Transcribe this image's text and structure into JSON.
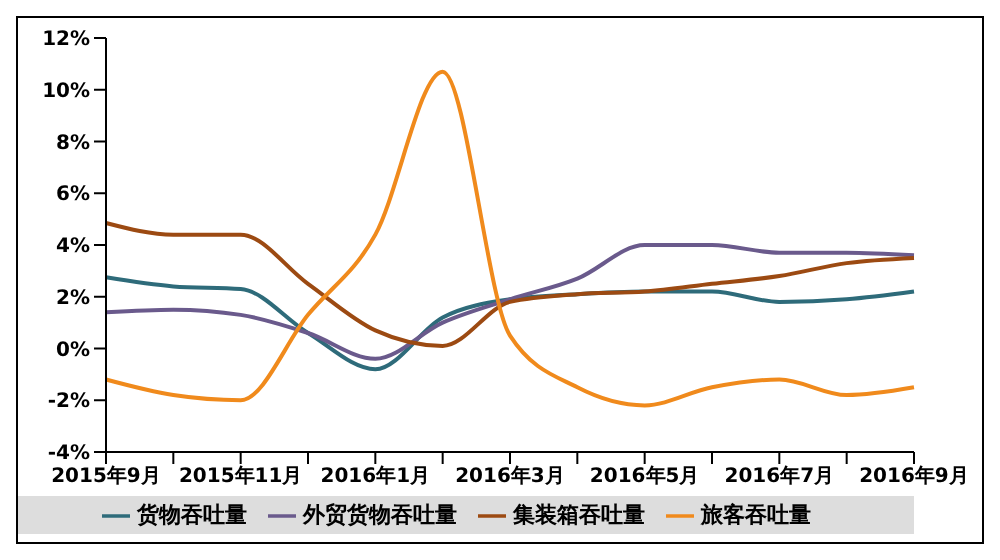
{
  "chart_data": {
    "type": "line",
    "categories": [
      "2015年9月",
      null,
      "2015年11月",
      null,
      "2016年1月",
      null,
      "2016年3月",
      null,
      "2016年5月",
      null,
      "2016年7月",
      null,
      "2016年9月"
    ],
    "series": [
      {
        "name": "货物吞吐量",
        "color": "#2e6b7a",
        "values": [
          2.75,
          2.4,
          2.3,
          0.6,
          -0.8,
          1.2,
          1.9,
          2.1,
          2.2,
          2.2,
          1.8,
          1.9,
          2.2
        ]
      },
      {
        "name": "外贸货物吞吐量",
        "color": "#6a5a8c",
        "values": [
          1.4,
          1.5,
          1.3,
          0.6,
          -0.4,
          1.0,
          1.9,
          2.7,
          4.0,
          4.0,
          3.7,
          3.7,
          3.6
        ]
      },
      {
        "name": "集装箱吞吐量",
        "color": "#9c4a12",
        "values": [
          4.85,
          4.4,
          4.4,
          2.5,
          0.7,
          0.1,
          1.8,
          2.1,
          2.2,
          2.5,
          2.8,
          3.3,
          3.5
        ]
      },
      {
        "name": "旅客吞吐量",
        "color": "#f08a1c",
        "values": [
          -1.2,
          -1.8,
          -2.0,
          1.3,
          4.4,
          10.7,
          0.5,
          -1.5,
          -2.2,
          -1.5,
          -1.2,
          -1.8,
          -1.5
        ]
      }
    ],
    "ylim": [
      -4,
      12
    ],
    "yticks": [
      {
        "value": -4,
        "label": "-4%"
      },
      {
        "value": -2,
        "label": "-2%"
      },
      {
        "value": 0,
        "label": "0%"
      },
      {
        "value": 2,
        "label": "2%"
      },
      {
        "value": 4,
        "label": "4%"
      },
      {
        "value": 6,
        "label": "6%"
      },
      {
        "value": 8,
        "label": "8%"
      },
      {
        "value": 10,
        "label": "10%"
      },
      {
        "value": 12,
        "label": "12%"
      }
    ],
    "grid": false,
    "legend": "bottom",
    "marker": "none",
    "line_style": "solid"
  }
}
